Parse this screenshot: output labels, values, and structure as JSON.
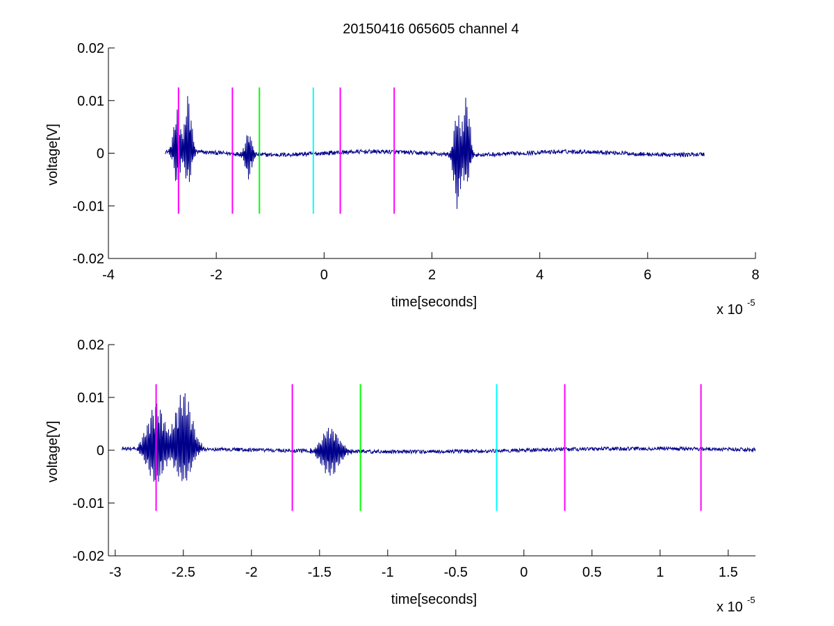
{
  "figure_title": "20150416 065605 channel 4",
  "chart_data": [
    {
      "type": "line",
      "title": "20150416 065605 channel 4",
      "xlabel": "time[seconds]",
      "ylabel": "voltage[V]",
      "x_multiplier_label": "x 10",
      "x_multiplier_exponent": "-5",
      "x_unit_scale": 1e-05,
      "xlim": [
        -4,
        8
      ],
      "ylim": [
        -0.02,
        0.02
      ],
      "xticks": [
        -4,
        -2,
        0,
        2,
        4,
        6,
        8
      ],
      "xtick_labels": [
        "-4",
        "-2",
        "0",
        "2",
        "4",
        "6",
        "8"
      ],
      "yticks": [
        -0.02,
        -0.01,
        0,
        0.01,
        0.02
      ],
      "ytick_labels": [
        "-0.02",
        "-0.01",
        "0",
        "0.01",
        "0.02"
      ],
      "grid": false,
      "series": [
        {
          "color": "#00008b",
          "x_range": [
            -2.95,
            7.05
          ],
          "baseline": 0,
          "noise_amplitude": 0.0004,
          "bursts": [
            {
              "x": -2.72,
              "min": -0.0065,
              "max": 0.0085
            },
            {
              "x": -2.52,
              "min": -0.0065,
              "max": 0.0108
            },
            {
              "x": -1.4,
              "min": -0.0047,
              "max": 0.0045
            },
            {
              "x": 2.47,
              "min": -0.0103,
              "max": 0.0077
            },
            {
              "x": 2.64,
              "min": -0.0058,
              "max": 0.0113
            }
          ]
        }
      ],
      "markers": [
        {
          "x": -2.7,
          "color": "#ff00ff"
        },
        {
          "x": -1.7,
          "color": "#ff00ff"
        },
        {
          "x": -1.2,
          "color": "#00ff00"
        },
        {
          "x": -0.2,
          "color": "#00ffff"
        },
        {
          "x": 0.3,
          "color": "#ff00ff"
        },
        {
          "x": 1.3,
          "color": "#ff00ff"
        }
      ],
      "marker_range": [
        -0.0115,
        0.0125
      ]
    },
    {
      "type": "line",
      "title": "",
      "xlabel": "time[seconds]",
      "ylabel": "voltage[V]",
      "x_multiplier_label": "x 10",
      "x_multiplier_exponent": "-5",
      "x_unit_scale": 1e-05,
      "xlim": [
        -3.05,
        1.7
      ],
      "ylim": [
        -0.02,
        0.02
      ],
      "xticks": [
        -3,
        -2.5,
        -2,
        -1.5,
        -1,
        -0.5,
        0,
        0.5,
        1,
        1.5
      ],
      "xtick_labels": [
        "-3",
        "-2.5",
        "-2",
        "-1.5",
        "-1",
        "-0.5",
        "0",
        "0.5",
        "1",
        "1.5"
      ],
      "yticks": [
        -0.02,
        -0.01,
        0,
        0.01,
        0.02
      ],
      "ytick_labels": [
        "-0.02",
        "-0.01",
        "0",
        "0.01",
        "0.02"
      ],
      "grid": false,
      "series": [
        {
          "color": "#00008b",
          "x_range": [
            -2.95,
            1.7
          ],
          "baseline": 0,
          "noise_amplitude": 0.00035,
          "bursts": [
            {
              "x": -2.7,
              "min": -0.0065,
              "max": 0.0085
            },
            {
              "x": -2.5,
              "min": -0.0065,
              "max": 0.0108
            },
            {
              "x": -1.42,
              "min": -0.0047,
              "max": 0.0045
            }
          ]
        }
      ],
      "markers": [
        {
          "x": -2.7,
          "color": "#ff00ff"
        },
        {
          "x": -1.7,
          "color": "#ff00ff"
        },
        {
          "x": -1.2,
          "color": "#00ff00"
        },
        {
          "x": -0.2,
          "color": "#00ffff"
        },
        {
          "x": 0.3,
          "color": "#ff00ff"
        },
        {
          "x": 1.3,
          "color": "#ff00ff"
        }
      ],
      "marker_range": [
        -0.0115,
        0.0125
      ]
    }
  ]
}
